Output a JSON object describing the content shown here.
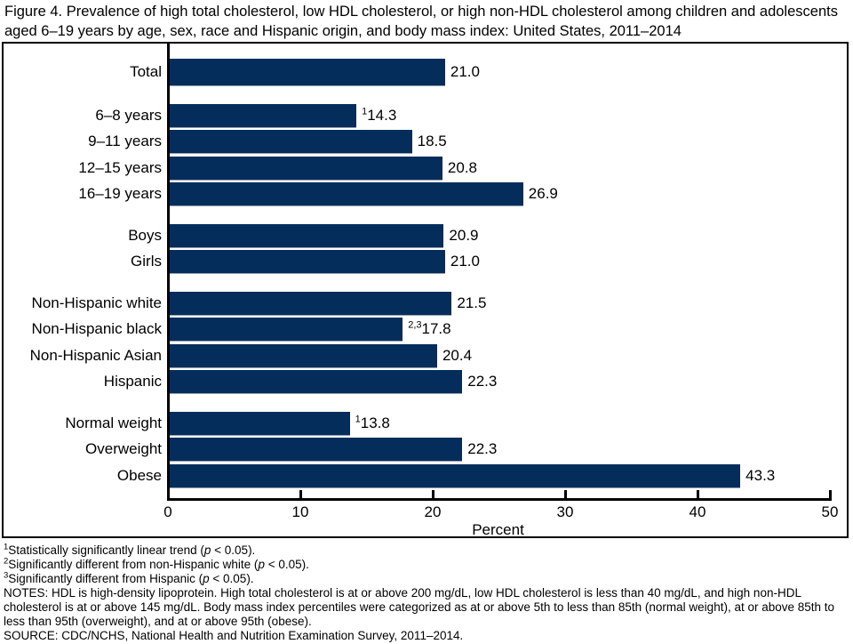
{
  "title": "Figure 4. Prevalence of high total cholesterol, low HDL cholesterol, or high non-HDL cholesterol among children and adolescents aged 6–19 years by age, sex, race and Hispanic origin, and body mass index: United States, 2011–2014",
  "chart_data": {
    "type": "bar",
    "orientation": "horizontal",
    "xlabel": "Percent",
    "xlim": [
      0,
      50
    ],
    "xticks": [
      0,
      10,
      20,
      30,
      40,
      50
    ],
    "bar_color": "#042d5c",
    "groups": [
      {
        "name": "total",
        "rows": [
          {
            "label": "Total",
            "value": 21.0,
            "flag": ""
          }
        ]
      },
      {
        "name": "age",
        "rows": [
          {
            "label": "6–8 years",
            "value": 14.3,
            "flag": "1"
          },
          {
            "label": "9–11 years",
            "value": 18.5,
            "flag": ""
          },
          {
            "label": "12–15 years",
            "value": 20.8,
            "flag": ""
          },
          {
            "label": "16–19 years",
            "value": 26.9,
            "flag": ""
          }
        ]
      },
      {
        "name": "sex",
        "rows": [
          {
            "label": "Boys",
            "value": 20.9,
            "flag": ""
          },
          {
            "label": "Girls",
            "value": 21.0,
            "flag": ""
          }
        ]
      },
      {
        "name": "race-hispanic-origin",
        "rows": [
          {
            "label": "Non-Hispanic white",
            "value": 21.5,
            "flag": ""
          },
          {
            "label": "Non-Hispanic black",
            "value": 17.8,
            "flag": "2,3"
          },
          {
            "label": "Non-Hispanic Asian",
            "value": 20.4,
            "flag": ""
          },
          {
            "label": "Hispanic",
            "value": 22.3,
            "flag": ""
          }
        ]
      },
      {
        "name": "body-mass-index",
        "rows": [
          {
            "label": "Normal weight",
            "value": 13.8,
            "flag": "1"
          },
          {
            "label": "Overweight",
            "value": 22.3,
            "flag": ""
          },
          {
            "label": "Obese",
            "value": 43.3,
            "flag": ""
          }
        ]
      }
    ]
  },
  "footnotes": [
    {
      "sup": "1",
      "pre": "Statistically significantly linear trend (",
      "italic": "p",
      "post": " < 0.05)."
    },
    {
      "sup": "2",
      "pre": "Significantly different from non-Hispanic white (",
      "italic": "p",
      "post": " < 0.05)."
    },
    {
      "sup": "3",
      "pre": "Significantly different from Hispanic (",
      "italic": "p",
      "post": " < 0.05)."
    }
  ],
  "notes": "NOTES: HDL is high-density lipoprotein. High total cholesterol is at or above 200 mg/dL, low HDL cholesterol is less than 40 mg/dL, and high non-HDL cholesterol is at or above 145 mg/dL. Body mass index percentiles were categorized as at or above 5th to less than 85th (normal weight), at or above 85th to less than 95th (overweight), and at or above 95th (obese).",
  "source": "SOURCE: CDC/NCHS, National Health and Nutrition Examination Survey, 2011–2014."
}
